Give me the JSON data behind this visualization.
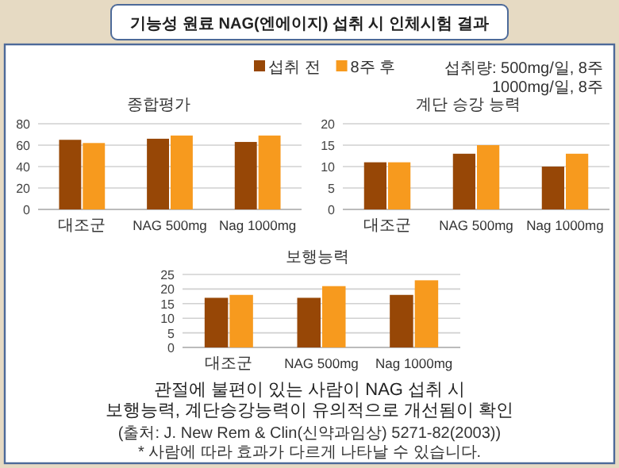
{
  "chart_data": [
    {
      "type": "other",
      "title": "기능성 원료 NAG(엔에이지) 섭취 시 인체시험 결과",
      "annotations": [
        "섭취량: 500mg/일, 8주",
        "1000mg/일, 8주",
        "관절에 불편이 있는 사람이 NAG 섭취 시",
        "보행능력, 계단승강능력이 유의적으로 개선됨이 확인",
        "(출처: J. New Rem & Clin(신약과임상) 5271-82(2003))",
        "* 사람에 따라 효과가 다르게 나타날 수 있습니다."
      ]
    },
    {
      "type": "bar",
      "title": "종합평가",
      "categories": [
        "대조군",
        "NAG 500mg",
        "Nag 1000mg"
      ],
      "ylim": [
        0,
        80
      ],
      "yticks": [
        0,
        20,
        40,
        60,
        80
      ],
      "grid": "y",
      "legend": "top",
      "series": [
        {
          "name": "섭취 전",
          "color": "#974706",
          "values": [
            65,
            66,
            63
          ]
        },
        {
          "name": "8주 후",
          "color": "#f79a1e",
          "values": [
            62,
            69,
            69
          ]
        }
      ]
    },
    {
      "type": "bar",
      "title": "계단 승강 능력",
      "categories": [
        "대조군",
        "NAG 500mg",
        "Nag 1000mg"
      ],
      "ylim": [
        0,
        20
      ],
      "yticks": [
        0,
        5,
        10,
        15,
        20
      ],
      "grid": "y",
      "series": [
        {
          "color": "#974706",
          "values": [
            11,
            13,
            10
          ]
        },
        {
          "color": "#f79a1e",
          "values": [
            11,
            15,
            13
          ]
        }
      ]
    },
    {
      "type": "bar",
      "title": "보행능력",
      "categories": [
        "대조군",
        "NAG 500mg",
        "Nag 1000mg"
      ],
      "ylim": [
        0,
        25
      ],
      "yticks": [
        0,
        5,
        10,
        15,
        20,
        25
      ],
      "grid": "y",
      "series": [
        {
          "color": "#974706",
          "values": [
            17,
            17,
            18
          ]
        },
        {
          "color": "#f79a1e",
          "values": [
            18,
            21,
            23
          ]
        }
      ]
    }
  ]
}
